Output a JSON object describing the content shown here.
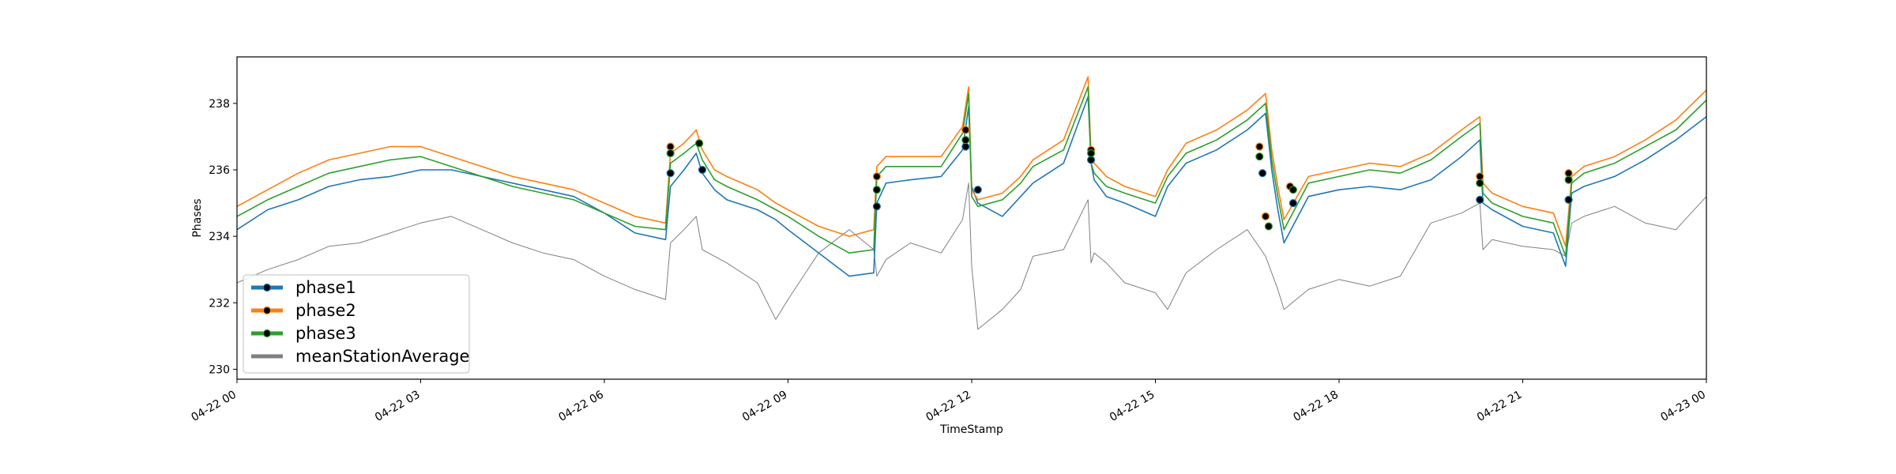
{
  "chart_data": {
    "type": "line",
    "title": "",
    "xlabel": "TimeStamp",
    "ylabel": "Phases",
    "xlim": [
      "04-22 00",
      "04-23 00"
    ],
    "ylim": [
      229.7,
      239.4
    ],
    "x_ticks": [
      "04-22 00",
      "04-22 03",
      "04-22 06",
      "04-22 09",
      "04-22 12",
      "04-22 15",
      "04-22 18",
      "04-22 21",
      "04-23 00"
    ],
    "y_ticks": [
      230,
      232,
      234,
      236,
      238
    ],
    "grid": false,
    "legend": {
      "position": "lower-left"
    },
    "x_hours": [
      0,
      0.5,
      1,
      1.5,
      2,
      2.5,
      3,
      3.5,
      4,
      4.5,
      5,
      5.5,
      6,
      6.5,
      7,
      7.08,
      7.3,
      7.5,
      7.6,
      7.8,
      8,
      8.5,
      8.8,
      9,
      9.5,
      10,
      10.4,
      10.45,
      10.6,
      11,
      11.5,
      11.85,
      11.95,
      12,
      12.1,
      12.5,
      12.8,
      13,
      13.5,
      13.9,
      13.95,
      14,
      14.2,
      14.5,
      15,
      15.2,
      15.5,
      16,
      16.5,
      16.8,
      16.9,
      17,
      17.1,
      17.5,
      18,
      18.5,
      19,
      19.5,
      20,
      20.3,
      20.35,
      20.5,
      21,
      21.5,
      21.7,
      21.8,
      22,
      22.5,
      23,
      23.5,
      24
    ],
    "series": [
      {
        "name": "phase1",
        "color": "#1f77b4",
        "values": [
          234.2,
          234.8,
          235.1,
          235.5,
          235.7,
          235.8,
          236,
          236,
          235.8,
          235.6,
          235.4,
          235.2,
          234.7,
          234.1,
          233.9,
          235.5,
          236,
          236.5,
          235.9,
          235.4,
          235.1,
          234.8,
          234.5,
          234.2,
          233.5,
          232.8,
          232.9,
          235,
          235.6,
          235.7,
          235.8,
          236.6,
          237.9,
          235.5,
          235,
          234.6,
          235.2,
          235.6,
          236.2,
          238.2,
          236.2,
          235.7,
          235.2,
          235,
          234.6,
          235.5,
          236.2,
          236.6,
          237.2,
          237.7,
          236,
          234.8,
          233.8,
          235.2,
          235.4,
          235.5,
          235.4,
          235.7,
          236.4,
          236.9,
          235,
          234.8,
          234.3,
          234.1,
          233.1,
          235.3,
          235.5,
          235.8,
          236.3,
          236.9,
          237.6
        ]
      },
      {
        "name": "phase2",
        "color": "#ff7f0e",
        "values": [
          234.9,
          235.4,
          235.9,
          236.3,
          236.5,
          236.7,
          236.7,
          236.4,
          236.1,
          235.8,
          235.6,
          235.4,
          235,
          234.6,
          234.4,
          236.5,
          236.8,
          237.2,
          236.6,
          236,
          235.8,
          235.4,
          235,
          234.8,
          234.3,
          234,
          234.2,
          236.1,
          236.4,
          236.4,
          236.4,
          237.3,
          238.5,
          235.4,
          235.1,
          235.3,
          235.8,
          236.3,
          236.9,
          238.8,
          236.4,
          236.2,
          235.8,
          235.5,
          235.2,
          236,
          236.8,
          237.2,
          237.8,
          238.3,
          236.6,
          235.5,
          234.5,
          235.8,
          236,
          236.2,
          236.1,
          236.5,
          237.2,
          237.6,
          235.6,
          235.3,
          234.9,
          234.7,
          233.7,
          235.8,
          236.1,
          236.4,
          236.9,
          237.5,
          238.4
        ]
      },
      {
        "name": "phase3",
        "color": "#2ca02c",
        "values": [
          234.6,
          235.1,
          235.5,
          235.9,
          236.1,
          236.3,
          236.4,
          236.1,
          235.8,
          235.5,
          235.3,
          235.1,
          234.7,
          234.3,
          234.2,
          236.2,
          236.5,
          236.8,
          236.3,
          235.7,
          235.5,
          235.1,
          234.8,
          234.6,
          234,
          233.5,
          233.6,
          235.8,
          236.1,
          236.1,
          236.1,
          237.1,
          238.3,
          235.2,
          234.9,
          235.1,
          235.6,
          236.1,
          236.6,
          238.5,
          236.2,
          235.9,
          235.5,
          235.3,
          235,
          235.8,
          236.5,
          236.9,
          237.5,
          238,
          236.3,
          235.2,
          234.2,
          235.6,
          235.8,
          236,
          235.9,
          236.3,
          237,
          237.4,
          235.3,
          235,
          234.6,
          234.4,
          233.4,
          235.6,
          235.9,
          236.2,
          236.7,
          237.2,
          238.1
        ]
      },
      {
        "name": "meanStationAverage",
        "color": "#808080",
        "values": [
          232.6,
          233,
          233.3,
          233.7,
          233.8,
          234.1,
          234.4,
          234.6,
          234.2,
          233.8,
          233.5,
          233.3,
          232.8,
          232.4,
          232.1,
          233.8,
          234.2,
          234.6,
          233.6,
          233.4,
          233.2,
          232.6,
          231.5,
          232.1,
          233.5,
          234.2,
          233.6,
          232.8,
          233.3,
          233.8,
          233.5,
          234.5,
          235.6,
          233.1,
          231.2,
          231.8,
          232.4,
          233.4,
          233.6,
          235.1,
          233.2,
          233.5,
          233.2,
          232.6,
          232.3,
          231.8,
          232.9,
          233.6,
          234.2,
          233.4,
          232.9,
          232.4,
          231.8,
          232.4,
          232.7,
          232.5,
          232.8,
          234.4,
          234.7,
          235,
          233.6,
          233.9,
          233.7,
          233.6,
          233.4,
          234.4,
          234.6,
          234.9,
          234.4,
          234.2,
          235.2
        ]
      }
    ],
    "markers": {
      "phase1": [
        [
          7.08,
          235.9
        ],
        [
          7.6,
          236
        ],
        [
          10.45,
          234.9
        ],
        [
          11.9,
          236.7
        ],
        [
          12.1,
          235.4
        ],
        [
          13.95,
          236.3
        ],
        [
          16.75,
          235.9
        ],
        [
          17.25,
          235
        ],
        [
          20.3,
          235.1
        ],
        [
          21.75,
          235.1
        ]
      ],
      "phase2": [
        [
          7.08,
          236.7
        ],
        [
          7.55,
          236.8
        ],
        [
          10.45,
          235.8
        ],
        [
          11.9,
          237.2
        ],
        [
          13.95,
          236.6
        ],
        [
          16.7,
          236.7
        ],
        [
          16.8,
          234.6
        ],
        [
          17.2,
          235.5
        ],
        [
          20.3,
          235.8
        ],
        [
          21.75,
          235.9
        ]
      ],
      "phase3": [
        [
          7.08,
          236.5
        ],
        [
          7.55,
          236.8
        ],
        [
          10.45,
          235.4
        ],
        [
          11.9,
          236.9
        ],
        [
          13.95,
          236.5
        ],
        [
          16.7,
          236.4
        ],
        [
          16.85,
          234.3
        ],
        [
          17.25,
          235.4
        ],
        [
          20.3,
          235.6
        ],
        [
          21.75,
          235.7
        ]
      ]
    }
  }
}
